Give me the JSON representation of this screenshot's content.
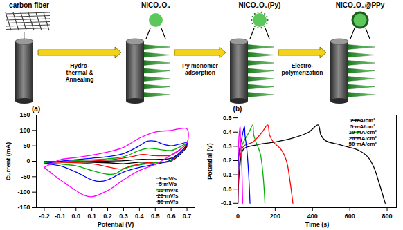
{
  "diagram": {
    "top_labels": [
      "carbon fiber",
      "NiCO₂O₄",
      "NiCO₂O₄(Py)",
      "NiCO₂O₄@PPy"
    ],
    "steps": [
      [
        "Hydro-",
        "thermal &",
        "Annealing"
      ],
      [
        "Py monomer",
        "adsorption"
      ],
      [
        "Electro-",
        "polymerization"
      ]
    ]
  },
  "chart_data": [
    {
      "type": "line",
      "title": "(a)",
      "x_label": "Potential (V)",
      "y_label": "Current (mA)",
      "xlim": [
        -0.25,
        0.75
      ],
      "ylim": [
        -150,
        150
      ],
      "xticks": [
        -0.2,
        -0.1,
        {
          "value": 0,
          "label": "0.0"
        },
        0.1,
        0.2,
        0.3,
        0.4,
        0.5,
        0.6,
        0.7
      ],
      "yticks": [
        -150,
        -100,
        -50,
        0,
        50,
        100,
        150
      ],
      "legend": "bottom-right",
      "series": [
        {
          "name": "1 mV/s",
          "color": "#000000",
          "x": [
            -0.2,
            0.3,
            0.4,
            0.5,
            0.6,
            0.65,
            0.7,
            0.7,
            0.6,
            0.4,
            0.3,
            0.2,
            -0.2
          ],
          "values": [
            -1,
            2,
            6,
            6,
            10,
            25,
            50,
            48,
            1,
            -3,
            -8,
            -5,
            -1
          ]
        },
        {
          "name": "5 mV/s",
          "color": "#ff0000",
          "x": [
            -0.2,
            0.2,
            0.35,
            0.42,
            0.5,
            0.6,
            0.65,
            0.7,
            0.7,
            0.6,
            0.45,
            0.35,
            0.28,
            0.2,
            0.1,
            -0.2
          ],
          "values": [
            -3,
            4,
            15,
            22,
            18,
            20,
            35,
            55,
            52,
            2,
            -5,
            -15,
            -25,
            -18,
            -8,
            -3
          ]
        },
        {
          "name": "10 mV/s",
          "color": "#00b000",
          "x": [
            -0.2,
            0,
            0.2,
            0.3,
            0.4,
            0.45,
            0.5,
            0.6,
            0.65,
            0.7,
            0.7,
            0.6,
            0.5,
            0.4,
            0.3,
            0.25,
            0.2,
            0.1,
            0,
            -0.2
          ],
          "values": [
            -5,
            2,
            8,
            15,
            35,
            42,
            40,
            35,
            45,
            58,
            55,
            3,
            -5,
            -12,
            -25,
            -40,
            -42,
            -30,
            -15,
            -5
          ]
        },
        {
          "name": "20 mV/s",
          "color": "#0000ff",
          "x": [
            -0.2,
            -0.1,
            0,
            0.1,
            0.2,
            0.3,
            0.4,
            0.45,
            0.5,
            0.55,
            0.6,
            0.65,
            0.7,
            0.7,
            0.6,
            0.5,
            0.4,
            0.3,
            0.2,
            0.15,
            0.1,
            0,
            -0.1,
            -0.2
          ],
          "values": [
            -8,
            0,
            5,
            10,
            15,
            25,
            50,
            65,
            65,
            55,
            50,
            55,
            60,
            55,
            5,
            -10,
            -20,
            -35,
            -60,
            -65,
            -60,
            -35,
            -15,
            -8
          ]
        },
        {
          "name": "50 mV/s",
          "color": "#ff00ff",
          "x": [
            -0.2,
            -0.1,
            0,
            0.1,
            0.2,
            0.3,
            0.4,
            0.5,
            0.6,
            0.65,
            0.7,
            0.7,
            0.6,
            0.5,
            0.4,
            0.3,
            0.2,
            0.1,
            0.05,
            0,
            -0.1,
            -0.2
          ],
          "values": [
            -20,
            5,
            12,
            20,
            30,
            45,
            75,
            95,
            100,
            105,
            105,
            60,
            20,
            -10,
            -30,
            -60,
            -95,
            -115,
            -110,
            -95,
            -60,
            -20
          ]
        }
      ]
    },
    {
      "type": "line",
      "title": "(b)",
      "x_label": "Time (s)",
      "y_label": "Potential (V)",
      "xlim": [
        0,
        850
      ],
      "ylim": [
        -0.13,
        0.52
      ],
      "xticks": [
        0,
        200,
        400,
        600,
        800
      ],
      "yticks": [
        -0.1,
        {
          "value": 0,
          "label": "0.0"
        },
        0.1,
        0.2,
        0.3,
        0.4,
        0.5
      ],
      "legend": "top-right",
      "series": [
        {
          "name": "2 mA/cm²",
          "color": "#000000",
          "x": [
            0,
            10,
            30,
            100,
            200,
            300,
            380,
            430,
            445,
            470,
            550,
            650,
            700,
            730,
            760,
            790
          ],
          "values": [
            -0.1,
            0.15,
            0.28,
            0.31,
            0.33,
            0.36,
            0.4,
            0.45,
            0.38,
            0.34,
            0.31,
            0.27,
            0.22,
            0.15,
            0.03,
            -0.1
          ]
        },
        {
          "name": "5 mA/cm²",
          "color": "#ff0000",
          "x": [
            0,
            10,
            30,
            80,
            130,
            160,
            170,
            190,
            230,
            260,
            280,
            295
          ],
          "values": [
            -0.1,
            0.2,
            0.3,
            0.33,
            0.4,
            0.45,
            0.38,
            0.33,
            0.28,
            0.2,
            0.05,
            -0.1
          ]
        },
        {
          "name": "10 mA/cm²",
          "color": "#00b000",
          "x": [
            0,
            8,
            30,
            60,
            80,
            85,
            100,
            120,
            135,
            145
          ],
          "values": [
            -0.1,
            0.25,
            0.33,
            0.4,
            0.45,
            0.38,
            0.32,
            0.25,
            0.1,
            -0.1
          ]
        },
        {
          "name": "20 mA/cm²",
          "color": "#0000ff",
          "x": [
            0,
            5,
            20,
            35,
            38,
            48,
            58,
            65
          ],
          "values": [
            -0.1,
            0.25,
            0.35,
            0.44,
            0.38,
            0.28,
            0.1,
            -0.1
          ]
        },
        {
          "name": "50 mA/cm²",
          "color": "#ff00ff",
          "x": [
            0,
            3,
            12,
            14,
            20,
            26
          ],
          "values": [
            -0.1,
            0.3,
            0.44,
            0.35,
            0.2,
            -0.1
          ]
        }
      ]
    }
  ]
}
